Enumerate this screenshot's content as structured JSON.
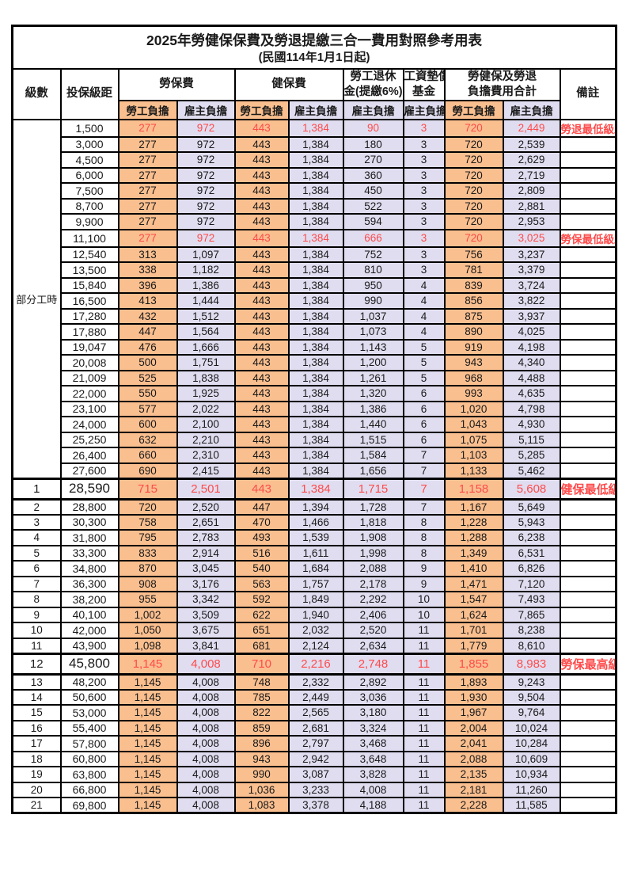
{
  "title": "2025年勞健保保費及勞退提繳三合一費用對照參考用表",
  "subtitle": "(民國114年1月1日起)",
  "colors": {
    "employee_bg": "#FABF8F",
    "employer_bg": "#E0DDF0",
    "highlight_red": "#FF4B4B"
  },
  "header": {
    "level": "級數",
    "bracket": "投保級距",
    "labor_ins": "勞保費",
    "health_ins": "健保費",
    "pension_line1": "勞工退休",
    "pension_line2": "金(提繳6%)",
    "wage_fund_line1": "工資墊償",
    "wage_fund_line2": "基金",
    "total_line1": "勞健保及勞退",
    "total_line2": "負擔費用合計",
    "employee_label": "勞工負擔",
    "employer_label": "雇主負擔",
    "remark": "備註"
  },
  "part_time": {
    "label": "部分工時",
    "span": 23
  },
  "rows": [
    {
      "level": "",
      "bracket": "1,500",
      "v": [
        "277",
        "972",
        "443",
        "1,384",
        "90",
        "3",
        "720",
        "2,449"
      ],
      "remark": "勞退最低級距",
      "red": true,
      "key": false
    },
    {
      "level": "",
      "bracket": "3,000",
      "v": [
        "277",
        "972",
        "443",
        "1,384",
        "180",
        "3",
        "720",
        "2,539"
      ],
      "remark": "",
      "red": false,
      "key": false
    },
    {
      "level": "",
      "bracket": "4,500",
      "v": [
        "277",
        "972",
        "443",
        "1,384",
        "270",
        "3",
        "720",
        "2,629"
      ],
      "remark": "",
      "red": false,
      "key": false
    },
    {
      "level": "",
      "bracket": "6,000",
      "v": [
        "277",
        "972",
        "443",
        "1,384",
        "360",
        "3",
        "720",
        "2,719"
      ],
      "remark": "",
      "red": false,
      "key": false
    },
    {
      "level": "",
      "bracket": "7,500",
      "v": [
        "277",
        "972",
        "443",
        "1,384",
        "450",
        "3",
        "720",
        "2,809"
      ],
      "remark": "",
      "red": false,
      "key": false
    },
    {
      "level": "",
      "bracket": "8,700",
      "v": [
        "277",
        "972",
        "443",
        "1,384",
        "522",
        "3",
        "720",
        "2,881"
      ],
      "remark": "",
      "red": false,
      "key": false
    },
    {
      "level": "",
      "bracket": "9,900",
      "v": [
        "277",
        "972",
        "443",
        "1,384",
        "594",
        "3",
        "720",
        "2,953"
      ],
      "remark": "",
      "red": false,
      "key": false
    },
    {
      "level": "",
      "bracket": "11,100",
      "v": [
        "277",
        "972",
        "443",
        "1,384",
        "666",
        "3",
        "720",
        "3,025"
      ],
      "remark": "勞保最低級距",
      "red": true,
      "key": false
    },
    {
      "level": "",
      "bracket": "12,540",
      "v": [
        "313",
        "1,097",
        "443",
        "1,384",
        "752",
        "3",
        "756",
        "3,237"
      ],
      "remark": "",
      "red": false,
      "key": false
    },
    {
      "level": "",
      "bracket": "13,500",
      "v": [
        "338",
        "1,182",
        "443",
        "1,384",
        "810",
        "3",
        "781",
        "3,379"
      ],
      "remark": "",
      "red": false,
      "key": false
    },
    {
      "level": "",
      "bracket": "15,840",
      "v": [
        "396",
        "1,386",
        "443",
        "1,384",
        "950",
        "4",
        "839",
        "3,724"
      ],
      "remark": "",
      "red": false,
      "key": false
    },
    {
      "level": "",
      "bracket": "16,500",
      "v": [
        "413",
        "1,444",
        "443",
        "1,384",
        "990",
        "4",
        "856",
        "3,822"
      ],
      "remark": "",
      "red": false,
      "key": false
    },
    {
      "level": "",
      "bracket": "17,280",
      "v": [
        "432",
        "1,512",
        "443",
        "1,384",
        "1,037",
        "4",
        "875",
        "3,937"
      ],
      "remark": "",
      "red": false,
      "key": false
    },
    {
      "level": "",
      "bracket": "17,880",
      "v": [
        "447",
        "1,564",
        "443",
        "1,384",
        "1,073",
        "4",
        "890",
        "4,025"
      ],
      "remark": "",
      "red": false,
      "key": false
    },
    {
      "level": "",
      "bracket": "19,047",
      "v": [
        "476",
        "1,666",
        "443",
        "1,384",
        "1,143",
        "5",
        "919",
        "4,198"
      ],
      "remark": "",
      "red": false,
      "key": false
    },
    {
      "level": "",
      "bracket": "20,008",
      "v": [
        "500",
        "1,751",
        "443",
        "1,384",
        "1,200",
        "5",
        "943",
        "4,340"
      ],
      "remark": "",
      "red": false,
      "key": false
    },
    {
      "level": "",
      "bracket": "21,009",
      "v": [
        "525",
        "1,838",
        "443",
        "1,384",
        "1,261",
        "5",
        "968",
        "4,488"
      ],
      "remark": "",
      "red": false,
      "key": false
    },
    {
      "level": "",
      "bracket": "22,000",
      "v": [
        "550",
        "1,925",
        "443",
        "1,384",
        "1,320",
        "6",
        "993",
        "4,635"
      ],
      "remark": "",
      "red": false,
      "key": false
    },
    {
      "level": "",
      "bracket": "23,100",
      "v": [
        "577",
        "2,022",
        "443",
        "1,384",
        "1,386",
        "6",
        "1,020",
        "4,798"
      ],
      "remark": "",
      "red": false,
      "key": false
    },
    {
      "level": "",
      "bracket": "24,000",
      "v": [
        "600",
        "2,100",
        "443",
        "1,384",
        "1,440",
        "6",
        "1,043",
        "4,930"
      ],
      "remark": "",
      "red": false,
      "key": false
    },
    {
      "level": "",
      "bracket": "25,250",
      "v": [
        "632",
        "2,210",
        "443",
        "1,384",
        "1,515",
        "6",
        "1,075",
        "5,115"
      ],
      "remark": "",
      "red": false,
      "key": false
    },
    {
      "level": "",
      "bracket": "26,400",
      "v": [
        "660",
        "2,310",
        "443",
        "1,384",
        "1,584",
        "7",
        "1,103",
        "5,285"
      ],
      "remark": "",
      "red": false,
      "key": false
    },
    {
      "level": "",
      "bracket": "27,600",
      "v": [
        "690",
        "2,415",
        "443",
        "1,384",
        "1,656",
        "7",
        "1,133",
        "5,462"
      ],
      "remark": "",
      "red": false,
      "key": false
    },
    {
      "level": "1",
      "bracket": "28,590",
      "v": [
        "715",
        "2,501",
        "443",
        "1,384",
        "1,715",
        "7",
        "1,158",
        "5,608"
      ],
      "remark": "健保最低級距",
      "red": true,
      "key": true
    },
    {
      "level": "2",
      "bracket": "28,800",
      "v": [
        "720",
        "2,520",
        "447",
        "1,394",
        "1,728",
        "7",
        "1,167",
        "5,649"
      ],
      "remark": "",
      "red": false,
      "key": false
    },
    {
      "level": "3",
      "bracket": "30,300",
      "v": [
        "758",
        "2,651",
        "470",
        "1,466",
        "1,818",
        "8",
        "1,228",
        "5,943"
      ],
      "remark": "",
      "red": false,
      "key": false
    },
    {
      "level": "4",
      "bracket": "31,800",
      "v": [
        "795",
        "2,783",
        "493",
        "1,539",
        "1,908",
        "8",
        "1,288",
        "6,238"
      ],
      "remark": "",
      "red": false,
      "key": false
    },
    {
      "level": "5",
      "bracket": "33,300",
      "v": [
        "833",
        "2,914",
        "516",
        "1,611",
        "1,998",
        "8",
        "1,349",
        "6,531"
      ],
      "remark": "",
      "red": false,
      "key": false
    },
    {
      "level": "6",
      "bracket": "34,800",
      "v": [
        "870",
        "3,045",
        "540",
        "1,684",
        "2,088",
        "9",
        "1,410",
        "6,826"
      ],
      "remark": "",
      "red": false,
      "key": false
    },
    {
      "level": "7",
      "bracket": "36,300",
      "v": [
        "908",
        "3,176",
        "563",
        "1,757",
        "2,178",
        "9",
        "1,471",
        "7,120"
      ],
      "remark": "",
      "red": false,
      "key": false
    },
    {
      "level": "8",
      "bracket": "38,200",
      "v": [
        "955",
        "3,342",
        "592",
        "1,849",
        "2,292",
        "10",
        "1,547",
        "7,493"
      ],
      "remark": "",
      "red": false,
      "key": false
    },
    {
      "level": "9",
      "bracket": "40,100",
      "v": [
        "1,002",
        "3,509",
        "622",
        "1,940",
        "2,406",
        "10",
        "1,624",
        "7,865"
      ],
      "remark": "",
      "red": false,
      "key": false
    },
    {
      "level": "10",
      "bracket": "42,000",
      "v": [
        "1,050",
        "3,675",
        "651",
        "2,032",
        "2,520",
        "11",
        "1,701",
        "8,238"
      ],
      "remark": "",
      "red": false,
      "key": false
    },
    {
      "level": "11",
      "bracket": "43,900",
      "v": [
        "1,098",
        "3,841",
        "681",
        "2,124",
        "2,634",
        "11",
        "1,779",
        "8,610"
      ],
      "remark": "",
      "red": false,
      "key": false
    },
    {
      "level": "12",
      "bracket": "45,800",
      "v": [
        "1,145",
        "4,008",
        "710",
        "2,216",
        "2,748",
        "11",
        "1,855",
        "8,983"
      ],
      "remark": "勞保最高級距",
      "red": true,
      "key": true
    },
    {
      "level": "13",
      "bracket": "48,200",
      "v": [
        "1,145",
        "4,008",
        "748",
        "2,332",
        "2,892",
        "11",
        "1,893",
        "9,243"
      ],
      "remark": "",
      "red": false,
      "key": false
    },
    {
      "level": "14",
      "bracket": "50,600",
      "v": [
        "1,145",
        "4,008",
        "785",
        "2,449",
        "3,036",
        "11",
        "1,930",
        "9,504"
      ],
      "remark": "",
      "red": false,
      "key": false
    },
    {
      "level": "15",
      "bracket": "53,000",
      "v": [
        "1,145",
        "4,008",
        "822",
        "2,565",
        "3,180",
        "11",
        "1,967",
        "9,764"
      ],
      "remark": "",
      "red": false,
      "key": false
    },
    {
      "level": "16",
      "bracket": "55,400",
      "v": [
        "1,145",
        "4,008",
        "859",
        "2,681",
        "3,324",
        "11",
        "2,004",
        "10,024"
      ],
      "remark": "",
      "red": false,
      "key": false
    },
    {
      "level": "17",
      "bracket": "57,800",
      "v": [
        "1,145",
        "4,008",
        "896",
        "2,797",
        "3,468",
        "11",
        "2,041",
        "10,284"
      ],
      "remark": "",
      "red": false,
      "key": false
    },
    {
      "level": "18",
      "bracket": "60,800",
      "v": [
        "1,145",
        "4,008",
        "943",
        "2,942",
        "3,648",
        "11",
        "2,088",
        "10,609"
      ],
      "remark": "",
      "red": false,
      "key": false
    },
    {
      "level": "19",
      "bracket": "63,800",
      "v": [
        "1,145",
        "4,008",
        "990",
        "3,087",
        "3,828",
        "11",
        "2,135",
        "10,934"
      ],
      "remark": "",
      "red": false,
      "key": false
    },
    {
      "level": "20",
      "bracket": "66,800",
      "v": [
        "1,145",
        "4,008",
        "1,036",
        "3,233",
        "4,008",
        "11",
        "2,181",
        "11,260"
      ],
      "remark": "",
      "red": false,
      "key": false
    },
    {
      "level": "21",
      "bracket": "69,800",
      "v": [
        "1,145",
        "4,008",
        "1,083",
        "3,378",
        "4,188",
        "11",
        "2,228",
        "11,585"
      ],
      "remark": "",
      "red": false,
      "key": false
    }
  ]
}
